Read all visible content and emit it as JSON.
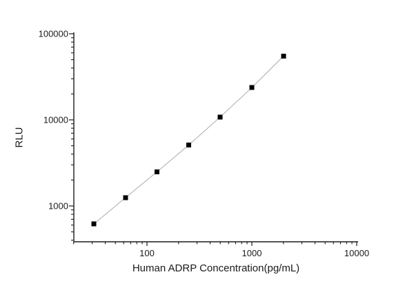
{
  "figure": {
    "background": "#ffffff"
  },
  "chart_data": {
    "type": "line",
    "title": "",
    "xlabel": "Human ADRP Concentration(pg/mL)",
    "ylabel": "RLU",
    "x_scale": "log10",
    "y_scale": "log10",
    "x": [
      31.25,
      62.5,
      125,
      250,
      500,
      1000,
      2000
    ],
    "y": [
      620,
      1250,
      2500,
      5100,
      10800,
      23700,
      55000
    ],
    "xlim": [
      20,
      10300
    ],
    "ylim": [
      383,
      104000
    ],
    "x_ticks": [
      {
        "value": 100,
        "label": "100"
      },
      {
        "value": 1000,
        "label": "1000"
      },
      {
        "value": 10000,
        "label": "10000"
      }
    ],
    "y_ticks": [
      {
        "value": 1000,
        "label": "1000"
      },
      {
        "value": 10000,
        "label": "10000"
      },
      {
        "value": 100000,
        "label": "100000"
      }
    ],
    "grid": false,
    "legend": "none",
    "marker": {
      "shape": "square",
      "size": 7,
      "color": "#000000"
    },
    "line": {
      "color": "#ababab",
      "width": 1
    },
    "axis_color": "#1a1a1a",
    "text_color": "#1a1a1a"
  }
}
